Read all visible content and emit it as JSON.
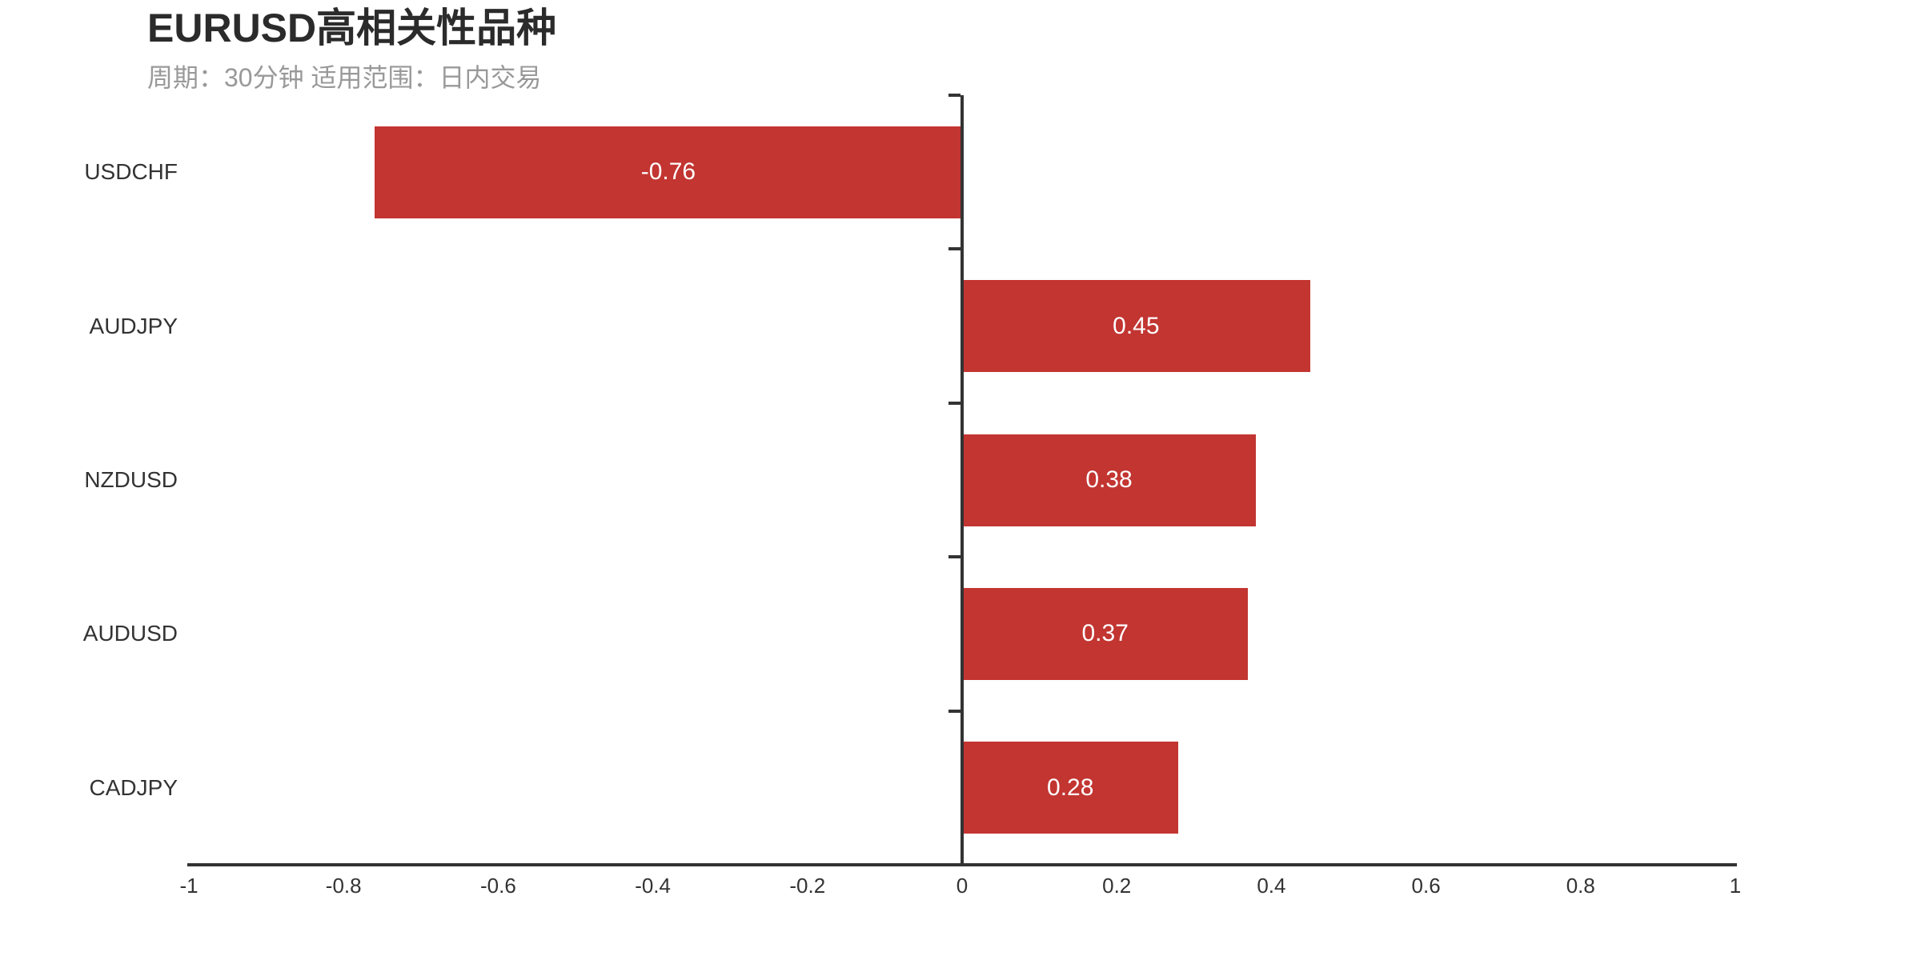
{
  "chart": {
    "background": "#ffffff"
  },
  "chart_data": {
    "type": "bar",
    "orientation": "horizontal",
    "title": "EURUSD高相关性品种",
    "subtitle": "周期：30分钟 适用范围：日内交易",
    "categories": [
      "USDCHF",
      "AUDJPY",
      "NZDUSD",
      "AUDUSD",
      "CADJPY"
    ],
    "values": [
      -0.76,
      0.45,
      0.38,
      0.37,
      0.28
    ],
    "value_labels": [
      "-0.76",
      "0.45",
      "0.38",
      "0.37",
      "0.28"
    ],
    "xlabel": "",
    "ylabel": "",
    "xlim": [
      -1,
      1
    ],
    "x_ticks": [
      -1,
      -0.8,
      -0.6,
      -0.4,
      -0.2,
      0,
      0.2,
      0.4,
      0.6,
      0.8,
      1
    ],
    "x_tick_labels": [
      "-1",
      "-0.8",
      "-0.6",
      "-0.4",
      "-0.2",
      "0",
      "0.2",
      "0.4",
      "0.6",
      "0.8",
      "1"
    ],
    "grid": false,
    "legend_position": "none",
    "colors": {
      "bar": "#c23531",
      "axis": "#333333",
      "tick_label": "#333333",
      "category_label": "#333333",
      "value_label": "#ffffff",
      "title": "#2b2b2b",
      "subtitle": "#999999",
      "background": "#ffffff"
    }
  }
}
